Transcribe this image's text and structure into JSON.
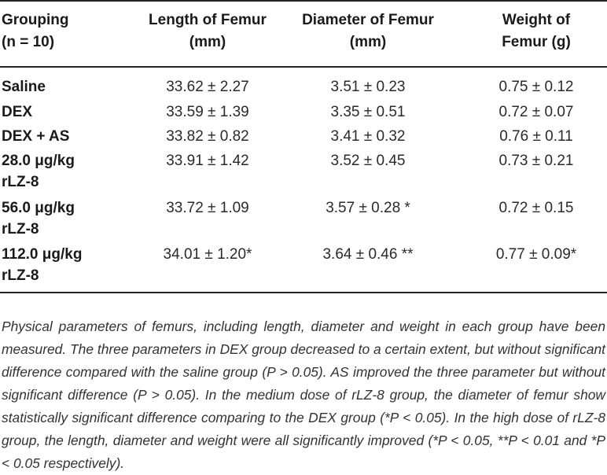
{
  "table": {
    "headers": {
      "grouping": [
        "Grouping",
        "(n = 10)"
      ],
      "length": [
        "Length of Femur",
        "(mm)"
      ],
      "diameter": [
        "Diameter of Femur",
        "(mm)"
      ],
      "weight": [
        "Weight of",
        "Femur (g)"
      ]
    },
    "rows": [
      {
        "group": [
          "Saline"
        ],
        "length": "33.62 ± 2.27",
        "diameter": "3.51 ± 0.23",
        "weight": "0.75 ± 0.12"
      },
      {
        "group": [
          "DEX"
        ],
        "length": "33.59 ± 1.39",
        "diameter": "3.35 ± 0.51",
        "weight": "0.72 ± 0.07"
      },
      {
        "group": [
          "DEX + AS"
        ],
        "length": "33.82 ± 0.82",
        "diameter": "3.41 ± 0.32",
        "weight": "0.76 ± 0.11"
      },
      {
        "group": [
          "28.0 μg/kg",
          "rLZ-8"
        ],
        "length": "33.91 ± 1.42",
        "diameter": "3.52 ± 0.45",
        "weight": "0.73 ± 0.21"
      },
      {
        "group": [
          "56.0 μg/kg",
          "rLZ-8"
        ],
        "length": "33.72 ± 1.09",
        "diameter": "3.57 ± 0.28 *",
        "weight": "0.72 ± 0.15"
      },
      {
        "group": [
          "112.0 μg/kg",
          "rLZ-8"
        ],
        "length": "34.01 ± 1.20*",
        "diameter": "3.64 ± 0.46 **",
        "weight": "0.77 ± 0.09*"
      }
    ]
  },
  "footnote": "Physical parameters of femurs, including length, diameter and weight in each group have been measured. The three parameters in DEX group decreased to a certain extent, but without significant difference compared with the saline group (P > 0.05). AS improved the three parameter but without significant difference (P > 0.05). In the medium dose of rLZ-8 group, the diameter of femur show statistically significant difference comparing to the DEX group (*P < 0.05). In the high dose of rLZ-8 group, the length, diameter and weight were all significantly improved (*P < 0.05, **P < 0.01 and *P < 0.05 respectively)."
}
